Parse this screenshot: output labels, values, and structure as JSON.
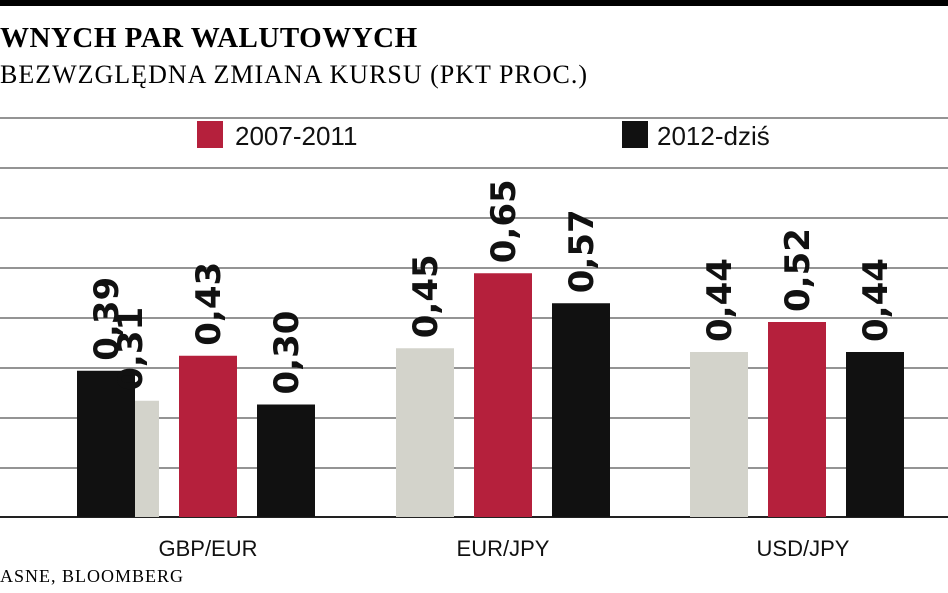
{
  "header": {
    "title": "WNYCH PAR WALUTOWYCH",
    "subtitle": "BEZWZGLĘDNA ZMIANA KURSU (PKT PROC.)"
  },
  "footer": {
    "source": "ASNE, BLOOMBERG"
  },
  "colors": {
    "series_unlabeled": "#d3d3cb",
    "series_2007_2011": "#b5203c",
    "series_2012": "#111111",
    "grid": "#555555"
  },
  "chart_data": {
    "type": "bar",
    "title": "",
    "ylim": [
      0,
      0.8
    ],
    "grid": true,
    "legend_position": "top",
    "categories": [
      "",
      "GBP/EUR",
      "EUR/JPY",
      "USD/JPY"
    ],
    "series": [
      {
        "values": [
          null,
          0.31,
          0.45,
          0.44
        ],
        "labels": [
          "",
          "0,31",
          "0,45",
          "0,44"
        ]
      },
      {
        "name": "2007-2011",
        "values": [
          null,
          0.43,
          0.65,
          0.52
        ],
        "labels": [
          "",
          "0,43",
          "0,65",
          "0,52"
        ]
      },
      {
        "name": "2012-dziś",
        "values": [
          0.39,
          0.3,
          0.57,
          0.44
        ],
        "labels": [
          "0,39",
          "0,30",
          "0,57",
          "0,44"
        ]
      }
    ]
  }
}
